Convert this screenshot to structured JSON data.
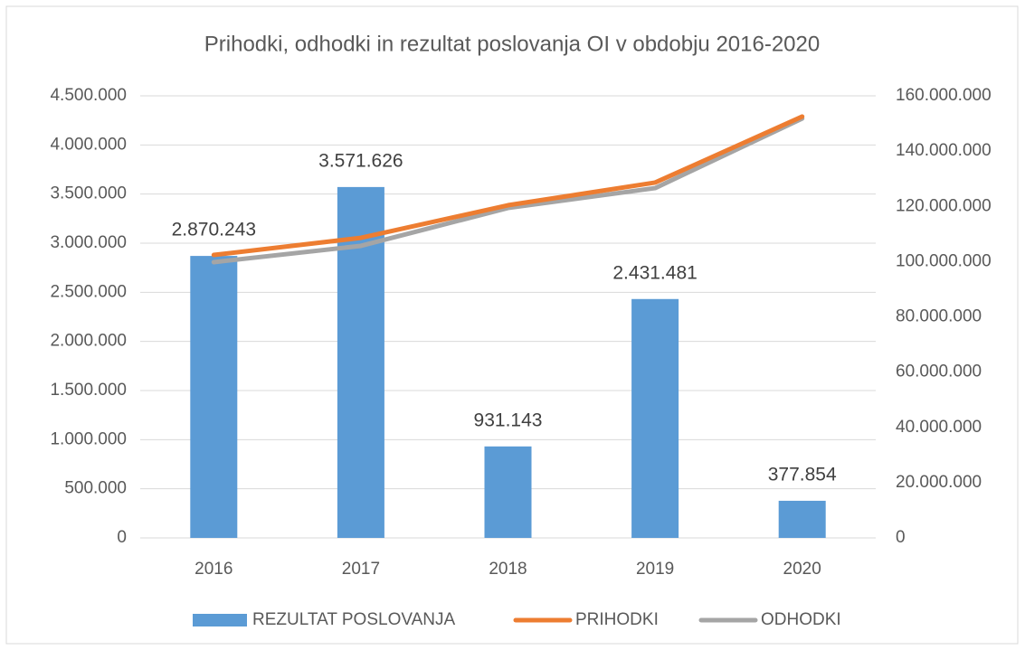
{
  "chart_data": {
    "type": "bar",
    "title": "Prihodki, odhodki in rezultat poslovanja OI v obdobju 2016-2020",
    "categories": [
      "2016",
      "2017",
      "2018",
      "2019",
      "2020"
    ],
    "series": [
      {
        "name": "REZULTAT POSLOVANJA",
        "type": "bar",
        "color": "#5b9bd5",
        "axis": "y",
        "values": [
          2870243,
          3571626,
          931143,
          2431481,
          377854
        ],
        "value_labels": [
          "2.870.243",
          "3.571.626",
          "931.143",
          "2.431.481",
          "377.854"
        ]
      },
      {
        "name": "PRIHODKI",
        "type": "line",
        "color": "#ed7d31",
        "axis": "y2",
        "values": [
          102400000,
          108600000,
          120400000,
          128600000,
          152500000
        ]
      },
      {
        "name": "ODHODKI",
        "type": "line",
        "color": "#a5a5a5",
        "axis": "y2",
        "values": [
          99800000,
          105700000,
          119400000,
          126600000,
          151800000
        ]
      }
    ],
    "ylim": [
      0,
      4500000
    ],
    "yticks": [
      0,
      {
        "value": 500000,
        "label": "500.000"
      },
      {
        "value": 1000000,
        "label": "1.000.000"
      },
      {
        "value": 1500000,
        "label": "1.500.000"
      },
      {
        "value": 2000000,
        "label": "2.000.000"
      },
      {
        "value": 2500000,
        "label": "2.500.000"
      },
      {
        "value": 3000000,
        "label": "3.000.000"
      },
      {
        "value": 3500000,
        "label": "3.500.000"
      },
      {
        "value": 4000000,
        "label": "4.000.000"
      },
      {
        "value": 4500000,
        "label": "4.500.000"
      }
    ],
    "y2lim": [
      0,
      160000000
    ],
    "y2ticks": [
      0,
      {
        "value": 20000000,
        "label": "20.000.000"
      },
      {
        "value": 40000000,
        "label": "40.000.000"
      },
      {
        "value": 60000000,
        "label": "60.000.000"
      },
      {
        "value": 80000000,
        "label": "80.000.000"
      },
      {
        "value": 100000000,
        "label": "100.000.000"
      },
      {
        "value": 120000000,
        "label": "120.000.000"
      },
      {
        "value": 140000000,
        "label": "140.000.000"
      },
      {
        "value": 160000000,
        "label": "160.000.000"
      }
    ],
    "grid": true,
    "legend": "bottom"
  }
}
